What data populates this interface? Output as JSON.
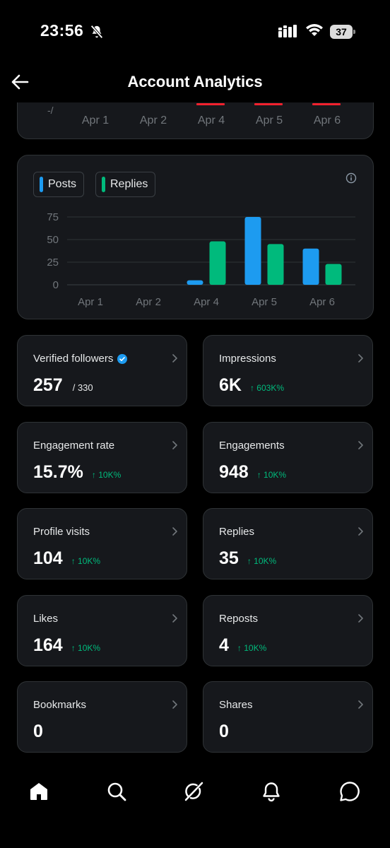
{
  "status_bar": {
    "time": "23:56",
    "battery": "37",
    "icons": [
      "bell-off-icon",
      "cellular-signal-icon",
      "wifi-icon",
      "battery-icon"
    ]
  },
  "header": {
    "title": "Account Analytics",
    "back_icon": "arrow-left-icon"
  },
  "top_chart": {
    "ticks": [
      "Apr 1",
      "Apr 2",
      "Apr 4",
      "Apr 5",
      "Apr 6"
    ],
    "partial_label": "-/",
    "line_color": "#f4212e"
  },
  "chart_data": {
    "type": "bar",
    "categories": [
      "Apr 1",
      "Apr 2",
      "Apr 4",
      "Apr 5",
      "Apr 6"
    ],
    "series": [
      {
        "name": "Posts",
        "color": "#1d9bf0",
        "values": [
          0,
          0,
          5,
          75,
          40
        ]
      },
      {
        "name": "Replies",
        "color": "#00ba7c",
        "values": [
          0,
          0,
          48,
          45,
          23
        ]
      }
    ],
    "yticks": [
      0,
      25,
      50,
      75
    ],
    "ylim": [
      0,
      80
    ],
    "grid": true,
    "legend": "top-left"
  },
  "metrics": [
    {
      "label": "Verified followers",
      "value": "257",
      "sub": "/ 330",
      "delta": "",
      "verified": true
    },
    {
      "label": "Impressions",
      "value": "6K",
      "sub": "",
      "delta": "↑ 603K%"
    },
    {
      "label": "Engagement rate",
      "value": "15.7%",
      "sub": "",
      "delta": "↑ 10K%"
    },
    {
      "label": "Engagements",
      "value": "948",
      "sub": "",
      "delta": "↑ 10K%"
    },
    {
      "label": "Profile visits",
      "value": "104",
      "sub": "",
      "delta": "↑ 10K%"
    },
    {
      "label": "Replies",
      "value": "35",
      "sub": "",
      "delta": "↑ 10K%"
    },
    {
      "label": "Likes",
      "value": "164",
      "sub": "",
      "delta": "↑ 10K%"
    },
    {
      "label": "Reposts",
      "value": "4",
      "sub": "",
      "delta": "↑ 10K%"
    },
    {
      "label": "Bookmarks",
      "value": "0",
      "sub": "",
      "delta": ""
    },
    {
      "label": "Shares",
      "value": "0",
      "sub": "",
      "delta": ""
    }
  ],
  "bottom_nav": [
    "home-icon",
    "search-icon",
    "grok-icon",
    "notifications-icon",
    "messages-icon"
  ],
  "colors": {
    "accent_blue": "#1d9bf0",
    "accent_green": "#00ba7c",
    "verified": "#1d9bf0"
  }
}
